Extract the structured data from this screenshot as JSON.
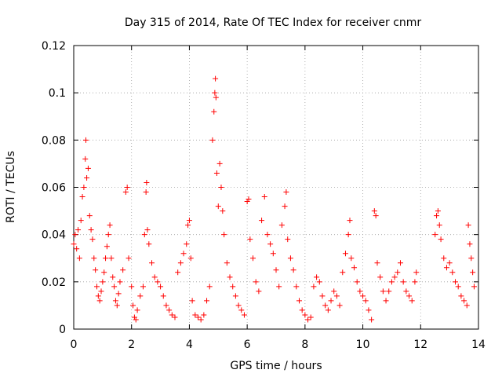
{
  "chart_data": {
    "type": "scatter",
    "title": "Day 315 of 2014, Rate Of TEC Index for receiver cnmr",
    "xlabel": "GPS time / hours",
    "ylabel": "ROTI / TECUs",
    "xlim": [
      0,
      14
    ],
    "ylim": [
      0,
      0.12
    ],
    "xticks": [
      0,
      2,
      4,
      6,
      8,
      10,
      12,
      14
    ],
    "xtick_labels": [
      "0",
      "2",
      "4",
      "6",
      "8",
      "10",
      "12",
      "14"
    ],
    "yticks": [
      0,
      0.02,
      0.04,
      0.06,
      0.08,
      0.1,
      0.12
    ],
    "ytick_labels": [
      "0",
      "0.02",
      "0.04",
      "0.06",
      "0.08",
      "0.1",
      "0.12"
    ],
    "grid": true,
    "marker": "+",
    "color": "#ff0000",
    "series": [
      {
        "name": "ROTI",
        "points": [
          [
            0.0,
            0.036
          ],
          [
            0.05,
            0.04
          ],
          [
            0.1,
            0.034
          ],
          [
            0.15,
            0.042
          ],
          [
            0.2,
            0.03
          ],
          [
            0.25,
            0.046
          ],
          [
            0.3,
            0.056
          ],
          [
            0.35,
            0.06
          ],
          [
            0.4,
            0.072
          ],
          [
            0.42,
            0.08
          ],
          [
            0.45,
            0.064
          ],
          [
            0.5,
            0.068
          ],
          [
            0.55,
            0.048
          ],
          [
            0.6,
            0.042
          ],
          [
            0.65,
            0.038
          ],
          [
            0.7,
            0.03
          ],
          [
            0.75,
            0.025
          ],
          [
            0.8,
            0.018
          ],
          [
            0.85,
            0.014
          ],
          [
            0.9,
            0.012
          ],
          [
            0.95,
            0.016
          ],
          [
            1.0,
            0.02
          ],
          [
            1.05,
            0.024
          ],
          [
            1.1,
            0.03
          ],
          [
            1.15,
            0.035
          ],
          [
            1.2,
            0.04
          ],
          [
            1.25,
            0.044
          ],
          [
            1.3,
            0.03
          ],
          [
            1.35,
            0.022
          ],
          [
            1.4,
            0.018
          ],
          [
            1.45,
            0.012
          ],
          [
            1.5,
            0.01
          ],
          [
            1.55,
            0.015
          ],
          [
            1.6,
            0.02
          ],
          [
            1.7,
            0.025
          ],
          [
            1.8,
            0.058
          ],
          [
            1.85,
            0.06
          ],
          [
            1.9,
            0.03
          ],
          [
            2.0,
            0.018
          ],
          [
            2.05,
            0.01
          ],
          [
            2.1,
            0.005
          ],
          [
            2.15,
            0.004
          ],
          [
            2.2,
            0.008
          ],
          [
            2.3,
            0.014
          ],
          [
            2.4,
            0.018
          ],
          [
            2.45,
            0.04
          ],
          [
            2.5,
            0.058
          ],
          [
            2.52,
            0.062
          ],
          [
            2.55,
            0.042
          ],
          [
            2.6,
            0.036
          ],
          [
            2.7,
            0.028
          ],
          [
            2.8,
            0.022
          ],
          [
            2.9,
            0.02
          ],
          [
            3.0,
            0.018
          ],
          [
            3.1,
            0.014
          ],
          [
            3.2,
            0.01
          ],
          [
            3.3,
            0.008
          ],
          [
            3.4,
            0.006
          ],
          [
            3.5,
            0.005
          ],
          [
            3.6,
            0.024
          ],
          [
            3.7,
            0.028
          ],
          [
            3.8,
            0.032
          ],
          [
            3.9,
            0.036
          ],
          [
            3.95,
            0.044
          ],
          [
            4.0,
            0.046
          ],
          [
            4.05,
            0.03
          ],
          [
            4.1,
            0.012
          ],
          [
            4.2,
            0.006
          ],
          [
            4.3,
            0.005
          ],
          [
            4.4,
            0.004
          ],
          [
            4.5,
            0.006
          ],
          [
            4.6,
            0.012
          ],
          [
            4.7,
            0.018
          ],
          [
            4.8,
            0.08
          ],
          [
            4.85,
            0.092
          ],
          [
            4.88,
            0.1
          ],
          [
            4.9,
            0.106
          ],
          [
            4.92,
            0.098
          ],
          [
            4.95,
            0.066
          ],
          [
            5.0,
            0.052
          ],
          [
            5.05,
            0.07
          ],
          [
            5.1,
            0.06
          ],
          [
            5.15,
            0.05
          ],
          [
            5.2,
            0.04
          ],
          [
            5.3,
            0.028
          ],
          [
            5.4,
            0.022
          ],
          [
            5.5,
            0.018
          ],
          [
            5.6,
            0.014
          ],
          [
            5.7,
            0.01
          ],
          [
            5.8,
            0.008
          ],
          [
            5.9,
            0.006
          ],
          [
            6.0,
            0.054
          ],
          [
            6.05,
            0.055
          ],
          [
            6.1,
            0.038
          ],
          [
            6.2,
            0.03
          ],
          [
            6.3,
            0.02
          ],
          [
            6.4,
            0.016
          ],
          [
            6.5,
            0.046
          ],
          [
            6.6,
            0.056
          ],
          [
            6.7,
            0.04
          ],
          [
            6.8,
            0.036
          ],
          [
            6.9,
            0.032
          ],
          [
            7.0,
            0.025
          ],
          [
            7.1,
            0.018
          ],
          [
            7.2,
            0.044
          ],
          [
            7.3,
            0.052
          ],
          [
            7.35,
            0.058
          ],
          [
            7.4,
            0.038
          ],
          [
            7.5,
            0.03
          ],
          [
            7.6,
            0.025
          ],
          [
            7.7,
            0.018
          ],
          [
            7.8,
            0.012
          ],
          [
            7.9,
            0.008
          ],
          [
            8.0,
            0.006
          ],
          [
            8.1,
            0.004
          ],
          [
            8.2,
            0.005
          ],
          [
            8.3,
            0.018
          ],
          [
            8.4,
            0.022
          ],
          [
            8.5,
            0.02
          ],
          [
            8.6,
            0.014
          ],
          [
            8.7,
            0.01
          ],
          [
            8.8,
            0.008
          ],
          [
            8.9,
            0.012
          ],
          [
            9.0,
            0.016
          ],
          [
            9.1,
            0.014
          ],
          [
            9.2,
            0.01
          ],
          [
            9.3,
            0.024
          ],
          [
            9.4,
            0.032
          ],
          [
            9.5,
            0.04
          ],
          [
            9.55,
            0.046
          ],
          [
            9.6,
            0.03
          ],
          [
            9.7,
            0.026
          ],
          [
            9.8,
            0.02
          ],
          [
            9.9,
            0.016
          ],
          [
            10.0,
            0.014
          ],
          [
            10.1,
            0.012
          ],
          [
            10.2,
            0.008
          ],
          [
            10.3,
            0.004
          ],
          [
            10.4,
            0.05
          ],
          [
            10.45,
            0.048
          ],
          [
            10.5,
            0.028
          ],
          [
            10.6,
            0.022
          ],
          [
            10.7,
            0.016
          ],
          [
            10.8,
            0.012
          ],
          [
            10.9,
            0.016
          ],
          [
            11.0,
            0.02
          ],
          [
            11.1,
            0.022
          ],
          [
            11.2,
            0.024
          ],
          [
            11.3,
            0.028
          ],
          [
            11.4,
            0.02
          ],
          [
            11.5,
            0.016
          ],
          [
            11.6,
            0.014
          ],
          [
            11.7,
            0.012
          ],
          [
            11.8,
            0.02
          ],
          [
            11.85,
            0.024
          ],
          [
            12.5,
            0.04
          ],
          [
            12.55,
            0.048
          ],
          [
            12.6,
            0.05
          ],
          [
            12.65,
            0.044
          ],
          [
            12.7,
            0.038
          ],
          [
            12.8,
            0.03
          ],
          [
            12.9,
            0.026
          ],
          [
            13.0,
            0.028
          ],
          [
            13.1,
            0.024
          ],
          [
            13.2,
            0.02
          ],
          [
            13.3,
            0.018
          ],
          [
            13.4,
            0.014
          ],
          [
            13.5,
            0.012
          ],
          [
            13.6,
            0.01
          ],
          [
            13.65,
            0.044
          ],
          [
            13.7,
            0.036
          ],
          [
            13.75,
            0.03
          ],
          [
            13.8,
            0.024
          ],
          [
            13.85,
            0.018
          ]
        ]
      }
    ]
  }
}
